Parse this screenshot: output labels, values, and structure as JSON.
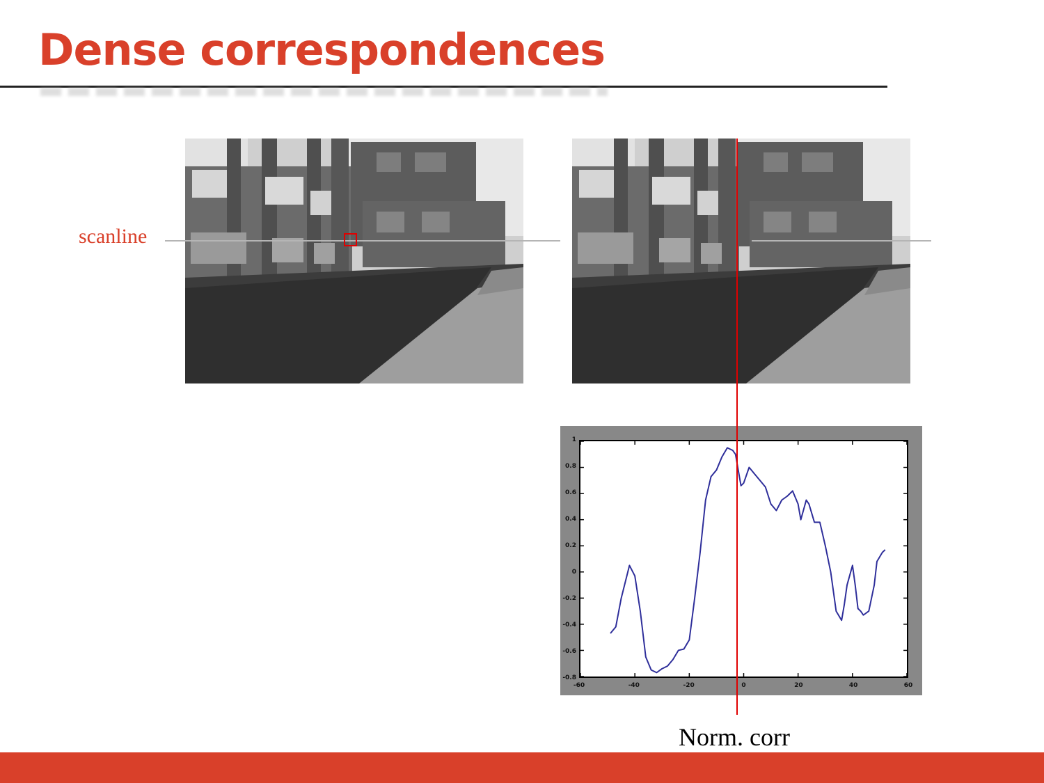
{
  "slide": {
    "title": "Dense correspondences",
    "scanline_label": "scanline",
    "caption": "Norm. corr",
    "accent_color": "#d9402a",
    "marker_color": "#e00000"
  },
  "images": [
    {
      "name": "stereo-left-image",
      "content": "grayscale photo of building with hedges and sidewalk (left view)"
    },
    {
      "name": "stereo-right-image",
      "content": "grayscale photo of building with hedges and sidewalk (right view)"
    }
  ],
  "chart_data": {
    "type": "line",
    "title": "",
    "xlabel": "",
    "ylabel": "",
    "xlim": [
      -60,
      60
    ],
    "ylim": [
      -0.8,
      1
    ],
    "x_ticks": [
      "-60",
      "-40",
      "-20",
      "0",
      "20",
      "40",
      "60"
    ],
    "y_ticks": [
      "1",
      "0.8",
      "0.6",
      "0.4",
      "0.2",
      "0",
      "-0.2",
      "-0.4",
      "-0.6",
      "-0.8"
    ],
    "line_color": "#2e2e9a",
    "marker_x": -3,
    "series": [
      {
        "x": [
          -49,
          -47,
          -45,
          -42,
          -40,
          -38,
          -36,
          -34,
          -32,
          -30,
          -28,
          -26,
          -24,
          -22,
          -20,
          -18,
          -16,
          -14,
          -12,
          -10,
          -8,
          -6,
          -4,
          -3,
          -2,
          -1,
          0,
          2,
          4,
          6,
          8,
          10,
          12,
          14,
          16,
          18,
          20,
          21,
          23,
          24,
          26,
          28,
          30,
          32,
          34,
          36,
          37,
          38,
          40,
          41,
          42,
          43,
          44,
          46,
          48,
          49,
          51,
          52
        ],
        "y": [
          -0.47,
          -0.42,
          -0.2,
          0.05,
          -0.03,
          -0.3,
          -0.65,
          -0.75,
          -0.77,
          -0.74,
          -0.72,
          -0.67,
          -0.6,
          -0.59,
          -0.52,
          -0.2,
          0.15,
          0.55,
          0.73,
          0.78,
          0.88,
          0.95,
          0.93,
          0.9,
          0.78,
          0.66,
          0.68,
          0.8,
          0.75,
          0.7,
          0.65,
          0.52,
          0.47,
          0.55,
          0.58,
          0.62,
          0.52,
          0.4,
          0.55,
          0.52,
          0.38,
          0.38,
          0.2,
          0.0,
          -0.3,
          -0.37,
          -0.25,
          -0.1,
          0.05,
          -0.1,
          -0.28,
          -0.3,
          -0.33,
          -0.3,
          -0.1,
          0.08,
          0.15,
          0.17
        ]
      }
    ]
  }
}
